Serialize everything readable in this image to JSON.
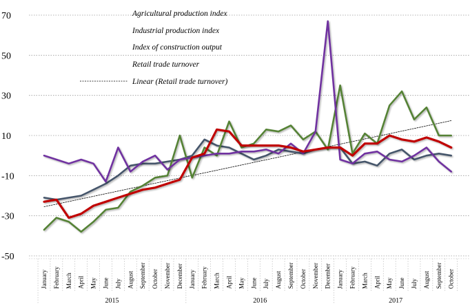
{
  "chart_data": {
    "type": "line",
    "ylim": [
      -50,
      70
    ],
    "y_ticks": [
      "70",
      "50",
      "30",
      "10",
      "-10",
      "-30",
      "-50"
    ],
    "y_tick_values": [
      70,
      50,
      30,
      10,
      -10,
      -30,
      -50
    ],
    "grid": "horizontal dotted",
    "legend_position": "top-center",
    "x_labels": [
      "January",
      "February",
      "March",
      "April",
      "May",
      "June",
      "July",
      "August",
      "September",
      "October",
      "November",
      "December",
      "January",
      "February",
      "March",
      "April",
      "May",
      "June",
      "July",
      "August",
      "September",
      "October",
      "November",
      "December",
      "January",
      "February",
      "March",
      "April",
      "May",
      "June",
      "July",
      "August",
      "September",
      "October"
    ],
    "years": [
      "2015",
      "2016",
      "2017"
    ],
    "series": [
      {
        "name": "Agricultural production index",
        "color": "#7030a0",
        "values": [
          0,
          -2,
          -4,
          -2,
          -4,
          -13,
          4,
          -8,
          -3,
          0,
          -7,
          -2,
          -1,
          0,
          1,
          1,
          2,
          2,
          3,
          1,
          6,
          1,
          12,
          67,
          -2,
          -4,
          1,
          2,
          -2,
          -3,
          0,
          4,
          -3,
          -8
        ]
      },
      {
        "name": "Industrial production index",
        "color": "#44546a",
        "values": [
          -21,
          -22,
          -21,
          -20,
          -17,
          -14,
          -10,
          -5,
          -4,
          -4,
          -3,
          -2,
          0,
          8,
          5,
          4,
          1,
          -2,
          0,
          3,
          2,
          1,
          3,
          4,
          4,
          -4,
          -3,
          -5,
          1,
          3,
          -2,
          0,
          1,
          0
        ]
      },
      {
        "name": "Index of construction output",
        "color": "#548235",
        "values": [
          -37,
          -31,
          -33,
          -38,
          -33,
          -27,
          -26,
          -18,
          -15,
          -11,
          -10,
          10,
          -11,
          4,
          0,
          17,
          4,
          6,
          13,
          12,
          15,
          8,
          12,
          3,
          35,
          1,
          11,
          6,
          25,
          32,
          18,
          24,
          10,
          10
        ]
      },
      {
        "name": "Retail trade turnover",
        "color": "#c00000",
        "values": [
          -23,
          -22,
          -31,
          -29,
          -25,
          -23,
          -21,
          -19,
          -17,
          -16,
          -14,
          -12,
          -1,
          1,
          13,
          12,
          5,
          5,
          5,
          5,
          4,
          2,
          3,
          4,
          4,
          0,
          6,
          6,
          10,
          8,
          7,
          9,
          7,
          4
        ]
      },
      {
        "name": "Linear (Retail trade turnover)",
        "color": "#000000",
        "dashed": true,
        "values": [
          -25.5,
          -24.2,
          -22.9,
          -21.6,
          -20.3,
          -19.0,
          -17.7,
          -16.4,
          -15.1,
          -13.8,
          -12.5,
          -11.2,
          -9.9,
          -8.6,
          -7.3,
          -6.0,
          -4.7,
          -3.4,
          -2.1,
          -0.8,
          0.5,
          1.8,
          3.1,
          4.4,
          5.7,
          7.0,
          8.3,
          9.6,
          10.9,
          12.2,
          13.5,
          14.8,
          16.1,
          17.4
        ]
      }
    ]
  }
}
